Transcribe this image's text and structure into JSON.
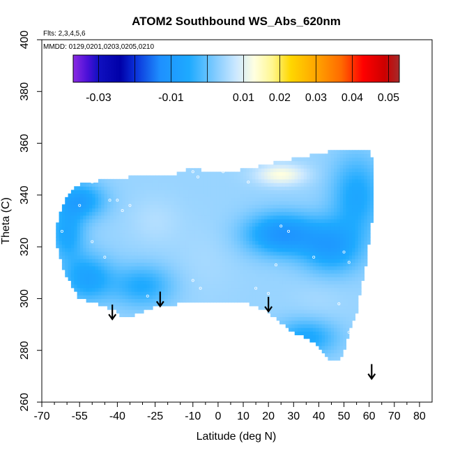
{
  "chart_data": {
    "type": "heatmap",
    "title": "ATOM2 Southbound WS_Abs_620nm",
    "subtitle_flights": "Flts: 2,3,4,5,6",
    "subtitle_dates": "MMDD: 0129,0201,0203,0205,0210",
    "xlabel": "Latitude (deg N)",
    "ylabel": "Theta (C)",
    "xlim": [
      -70,
      85
    ],
    "ylim": [
      260,
      400
    ],
    "x_ticks": [
      -70,
      -55,
      -40,
      -25,
      -10,
      0,
      10,
      20,
      30,
      40,
      50,
      60,
      70,
      80
    ],
    "x_minor_ticks": [
      -65,
      -60,
      -50,
      -45,
      -35,
      -30,
      -20,
      -15,
      -5,
      5,
      15,
      25,
      35,
      45,
      55,
      65,
      75
    ],
    "y_ticks": [
      260,
      280,
      300,
      320,
      340,
      360,
      380,
      400
    ],
    "colorbar": {
      "range": [
        -0.037,
        0.053
      ],
      "tick_values": [
        -0.03,
        -0.01,
        0.01,
        0.02,
        0.03,
        0.04,
        0.05
      ],
      "tick_labels": [
        "-0.03",
        "-0.01",
        "0.01",
        "0.02",
        "0.03",
        "0.04",
        "0.05"
      ],
      "divider_values": [
        -0.03,
        -0.02,
        -0.01,
        0.0,
        0.01,
        0.02,
        0.03,
        0.04,
        0.05
      ],
      "stops": [
        {
          "value": -0.037,
          "color": "#8b2be2"
        },
        {
          "value": -0.033,
          "color": "#4a10d8"
        },
        {
          "value": -0.03,
          "color": "#1010c0"
        },
        {
          "value": -0.024,
          "color": "#0000a8"
        },
        {
          "value": -0.02,
          "color": "#0a2fd8"
        },
        {
          "value": -0.013,
          "color": "#1e90ff"
        },
        {
          "value": -0.005,
          "color": "#1eaaff"
        },
        {
          "value": 0.003,
          "color": "#8ccfff"
        },
        {
          "value": 0.008,
          "color": "#cce8ff"
        },
        {
          "value": 0.013,
          "color": "#ffffe0"
        },
        {
          "value": 0.018,
          "color": "#fff68f"
        },
        {
          "value": 0.023,
          "color": "#ffd700"
        },
        {
          "value": 0.03,
          "color": "#ffa500"
        },
        {
          "value": 0.037,
          "color": "#ff6a00"
        },
        {
          "value": 0.043,
          "color": "#ff0000"
        },
        {
          "value": 0.049,
          "color": "#cc0000"
        },
        {
          "value": 0.053,
          "color": "#a52a2a"
        }
      ]
    },
    "field": {
      "outline": [
        [
          -65,
          325
        ],
        [
          -63,
          333
        ],
        [
          -60,
          340
        ],
        [
          -55,
          344
        ],
        [
          -45,
          346
        ],
        [
          -35,
          347
        ],
        [
          -20,
          347
        ],
        [
          -12,
          350
        ],
        [
          5,
          349
        ],
        [
          20,
          352
        ],
        [
          40,
          356
        ],
        [
          50,
          358
        ],
        [
          60,
          358
        ],
        [
          62,
          350
        ],
        [
          61,
          330
        ],
        [
          59,
          315
        ],
        [
          57,
          305
        ],
        [
          55,
          295
        ],
        [
          52,
          287
        ],
        [
          50,
          280
        ],
        [
          48,
          276
        ],
        [
          45,
          276
        ],
        [
          42,
          279
        ],
        [
          38,
          283
        ],
        [
          32,
          286
        ],
        [
          27,
          289
        ],
        [
          22,
          293
        ],
        [
          18,
          296
        ],
        [
          12,
          298
        ],
        [
          5,
          299
        ],
        [
          -5,
          299
        ],
        [
          -15,
          298
        ],
        [
          -25,
          297
        ],
        [
          -33,
          294
        ],
        [
          -37,
          292
        ],
        [
          -42,
          296
        ],
        [
          -48,
          298
        ],
        [
          -55,
          300
        ],
        [
          -60,
          308
        ],
        [
          -63,
          316
        ]
      ],
      "base_value": 0.004,
      "blobs": [
        {
          "center": [
            -55,
            338
          ],
          "radius": [
            10,
            7
          ],
          "value": -0.008
        },
        {
          "center": [
            -60,
            325
          ],
          "radius": [
            7,
            10
          ],
          "value": -0.006
        },
        {
          "center": [
            -52,
            308
          ],
          "radius": [
            10,
            9
          ],
          "value": -0.007
        },
        {
          "center": [
            -30,
            305
          ],
          "radius": [
            12,
            8
          ],
          "value": -0.005
        },
        {
          "center": [
            -25,
            330
          ],
          "radius": [
            10,
            9
          ],
          "value": 0.006
        },
        {
          "center": [
            -5,
            315
          ],
          "radius": [
            12,
            14
          ],
          "value": 0.005
        },
        {
          "center": [
            10,
            325
          ],
          "radius": [
            10,
            12
          ],
          "value": 0.004
        },
        {
          "center": [
            25,
            325
          ],
          "radius": [
            14,
            8
          ],
          "value": -0.011
        },
        {
          "center": [
            45,
            320
          ],
          "radius": [
            12,
            10
          ],
          "value": -0.008
        },
        {
          "center": [
            55,
            340
          ],
          "radius": [
            10,
            15
          ],
          "value": -0.006
        },
        {
          "center": [
            25,
            348
          ],
          "radius": [
            10,
            4
          ],
          "value": 0.013
        },
        {
          "center": [
            40,
            300
          ],
          "radius": [
            10,
            9
          ],
          "value": 0.005
        },
        {
          "center": [
            35,
            285
          ],
          "radius": [
            12,
            7
          ],
          "value": -0.006
        }
      ],
      "sample_points": [
        [
          -62,
          326
        ],
        [
          -55,
          336
        ],
        [
          -50,
          345
        ],
        [
          -43,
          338
        ],
        [
          -40,
          338
        ],
        [
          -38,
          334
        ],
        [
          -35,
          336
        ],
        [
          -28,
          301
        ],
        [
          -50,
          322
        ],
        [
          -45,
          316
        ],
        [
          -10,
          351
        ],
        [
          -10,
          349
        ],
        [
          -8,
          347
        ],
        [
          2,
          349
        ],
        [
          -10,
          307
        ],
        [
          -7,
          304
        ],
        [
          12,
          345
        ],
        [
          15,
          304
        ],
        [
          20,
          302
        ],
        [
          25,
          328
        ],
        [
          28,
          326
        ],
        [
          23,
          313
        ],
        [
          38,
          316
        ],
        [
          50,
          318
        ],
        [
          52,
          314
        ],
        [
          48,
          298
        ],
        [
          52,
          287
        ]
      ]
    },
    "annotations": {
      "arrows": [
        [
          -42,
          295
        ],
        [
          -23,
          300
        ],
        [
          20,
          298
        ],
        [
          61,
          272
        ]
      ]
    }
  }
}
